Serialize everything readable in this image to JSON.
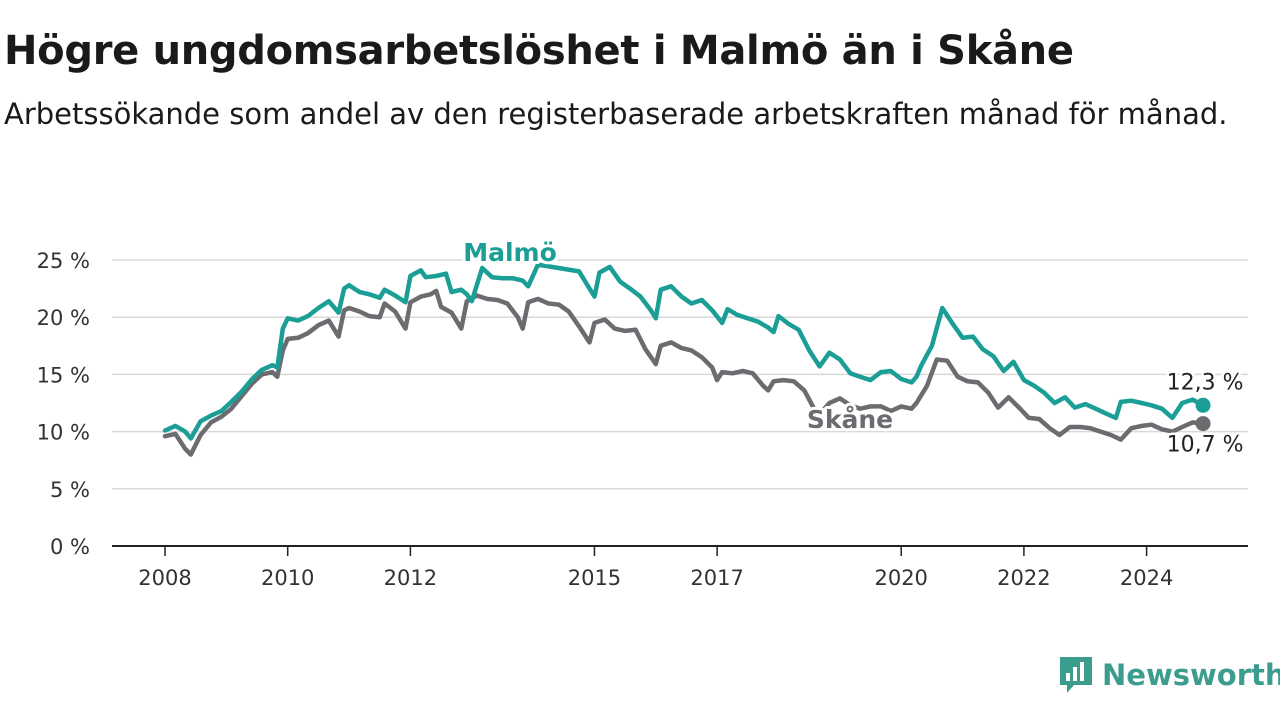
{
  "header": {
    "title": "Högre ungdomsarbetslöshet i Malmö än i Skåne",
    "subtitle": "Arbetssökande som andel av den registerbaserade arbetskraften månad för månad."
  },
  "brand": {
    "name": "Newsworthy",
    "icon": "newsworthy-logo-icon",
    "color": "#3c9d8f"
  },
  "chart_data": {
    "type": "line",
    "ylim": [
      0,
      25
    ],
    "xlim": [
      2008.0,
      2025.5
    ],
    "y_ticks": [
      {
        "value": 0,
        "label": "0 %"
      },
      {
        "value": 5,
        "label": "5 %"
      },
      {
        "value": 10,
        "label": "10 %"
      },
      {
        "value": 15,
        "label": "15 %"
      },
      {
        "value": 20,
        "label": "20 %"
      },
      {
        "value": 25,
        "label": "25 %"
      }
    ],
    "x_ticks": [
      {
        "value": 2008,
        "label": "2008"
      },
      {
        "value": 2010,
        "label": "2010"
      },
      {
        "value": 2012,
        "label": "2012"
      },
      {
        "value": 2015,
        "label": "2015"
      },
      {
        "value": 2017,
        "label": "2017"
      },
      {
        "value": 2020,
        "label": "2020"
      },
      {
        "value": 2022,
        "label": "2022"
      },
      {
        "value": 2024,
        "label": "2024"
      }
    ],
    "grid": "horizontal",
    "series": [
      {
        "name": "Malmö",
        "color": "#1a9e96",
        "end_label": "12,3 %",
        "points": [
          [
            2008.0,
            10.1
          ],
          [
            2008.17,
            10.5
          ],
          [
            2008.33,
            10.0
          ],
          [
            2008.42,
            9.4
          ],
          [
            2008.58,
            10.9
          ],
          [
            2008.75,
            11.4
          ],
          [
            2008.92,
            11.8
          ],
          [
            2009.08,
            12.6
          ],
          [
            2009.25,
            13.5
          ],
          [
            2009.42,
            14.6
          ],
          [
            2009.58,
            15.4
          ],
          [
            2009.75,
            15.8
          ],
          [
            2009.83,
            15.6
          ],
          [
            2009.92,
            19.0
          ],
          [
            2010.0,
            19.9
          ],
          [
            2010.17,
            19.7
          ],
          [
            2010.33,
            20.1
          ],
          [
            2010.5,
            20.8
          ],
          [
            2010.67,
            21.4
          ],
          [
            2010.83,
            20.4
          ],
          [
            2010.92,
            22.5
          ],
          [
            2011.0,
            22.8
          ],
          [
            2011.17,
            22.2
          ],
          [
            2011.33,
            22.0
          ],
          [
            2011.5,
            21.7
          ],
          [
            2011.58,
            22.4
          ],
          [
            2011.75,
            21.9
          ],
          [
            2011.92,
            21.3
          ],
          [
            2012.0,
            23.6
          ],
          [
            2012.17,
            24.1
          ],
          [
            2012.25,
            23.5
          ],
          [
            2012.42,
            23.6
          ],
          [
            2012.58,
            23.8
          ],
          [
            2012.67,
            22.2
          ],
          [
            2012.83,
            22.4
          ],
          [
            2012.92,
            22.0
          ],
          [
            2013.0,
            21.4
          ],
          [
            2013.17,
            24.3
          ],
          [
            2013.33,
            23.5
          ],
          [
            2013.5,
            23.4
          ],
          [
            2013.67,
            23.4
          ],
          [
            2013.83,
            23.2
          ],
          [
            2013.92,
            22.7
          ],
          [
            2014.08,
            24.6
          ],
          [
            2014.75,
            24.0
          ],
          [
            2014.92,
            22.5
          ],
          [
            2015.0,
            21.8
          ],
          [
            2015.08,
            23.9
          ],
          [
            2015.25,
            24.4
          ],
          [
            2015.42,
            23.1
          ],
          [
            2015.58,
            22.5
          ],
          [
            2015.75,
            21.8
          ],
          [
            2015.92,
            20.6
          ],
          [
            2016.0,
            19.9
          ],
          [
            2016.08,
            22.4
          ],
          [
            2016.25,
            22.7
          ],
          [
            2016.42,
            21.8
          ],
          [
            2016.58,
            21.2
          ],
          [
            2016.75,
            21.5
          ],
          [
            2016.92,
            20.6
          ],
          [
            2017.08,
            19.5
          ],
          [
            2017.17,
            20.7
          ],
          [
            2017.33,
            20.2
          ],
          [
            2017.5,
            19.9
          ],
          [
            2017.67,
            19.6
          ],
          [
            2017.83,
            19.1
          ],
          [
            2017.92,
            18.7
          ],
          [
            2018.0,
            20.1
          ],
          [
            2018.17,
            19.4
          ],
          [
            2018.33,
            18.9
          ],
          [
            2018.5,
            17.1
          ],
          [
            2018.67,
            15.7
          ],
          [
            2018.83,
            16.9
          ],
          [
            2019.0,
            16.3
          ],
          [
            2019.17,
            15.1
          ],
          [
            2019.33,
            14.8
          ],
          [
            2019.5,
            14.5
          ],
          [
            2019.67,
            15.2
          ],
          [
            2019.83,
            15.3
          ],
          [
            2020.0,
            14.6
          ],
          [
            2020.17,
            14.3
          ],
          [
            2020.25,
            14.8
          ],
          [
            2020.33,
            15.8
          ],
          [
            2020.5,
            17.5
          ],
          [
            2020.67,
            20.8
          ],
          [
            2020.83,
            19.5
          ],
          [
            2021.0,
            18.2
          ],
          [
            2021.17,
            18.3
          ],
          [
            2021.33,
            17.2
          ],
          [
            2021.5,
            16.6
          ],
          [
            2021.67,
            15.3
          ],
          [
            2021.83,
            16.1
          ],
          [
            2022.0,
            14.5
          ],
          [
            2022.17,
            14.0
          ],
          [
            2022.33,
            13.4
          ],
          [
            2022.5,
            12.5
          ],
          [
            2022.67,
            13.0
          ],
          [
            2022.83,
            12.1
          ],
          [
            2023.0,
            12.4
          ],
          [
            2023.17,
            12.0
          ],
          [
            2023.33,
            11.6
          ],
          [
            2023.5,
            11.2
          ],
          [
            2023.58,
            12.6
          ],
          [
            2023.75,
            12.7
          ],
          [
            2023.92,
            12.5
          ],
          [
            2024.08,
            12.3
          ],
          [
            2024.25,
            12.0
          ],
          [
            2024.42,
            11.2
          ],
          [
            2024.58,
            12.5
          ],
          [
            2024.75,
            12.8
          ],
          [
            2024.92,
            12.3
          ]
        ]
      },
      {
        "name": "Skåne",
        "color": "#6b6b70",
        "end_label": "10,7 %",
        "points": [
          [
            2008.0,
            9.6
          ],
          [
            2008.17,
            9.8
          ],
          [
            2008.33,
            8.5
          ],
          [
            2008.42,
            8.0
          ],
          [
            2008.58,
            9.7
          ],
          [
            2008.75,
            10.8
          ],
          [
            2008.92,
            11.3
          ],
          [
            2009.08,
            12.0
          ],
          [
            2009.25,
            13.1
          ],
          [
            2009.42,
            14.2
          ],
          [
            2009.58,
            15.0
          ],
          [
            2009.75,
            15.2
          ],
          [
            2009.83,
            14.8
          ],
          [
            2009.92,
            17.1
          ],
          [
            2010.0,
            18.1
          ],
          [
            2010.17,
            18.2
          ],
          [
            2010.33,
            18.6
          ],
          [
            2010.5,
            19.3
          ],
          [
            2010.67,
            19.7
          ],
          [
            2010.83,
            18.3
          ],
          [
            2010.92,
            20.6
          ],
          [
            2011.0,
            20.8
          ],
          [
            2011.17,
            20.5
          ],
          [
            2011.33,
            20.1
          ],
          [
            2011.5,
            20.0
          ],
          [
            2011.58,
            21.2
          ],
          [
            2011.75,
            20.5
          ],
          [
            2011.92,
            19.0
          ],
          [
            2012.0,
            21.3
          ],
          [
            2012.17,
            21.8
          ],
          [
            2012.33,
            22.0
          ],
          [
            2012.42,
            22.3
          ],
          [
            2012.5,
            20.9
          ],
          [
            2012.67,
            20.4
          ],
          [
            2012.83,
            19.0
          ],
          [
            2012.92,
            21.4
          ],
          [
            2013.08,
            21.9
          ],
          [
            2013.25,
            21.6
          ],
          [
            2013.42,
            21.5
          ],
          [
            2013.58,
            21.2
          ],
          [
            2013.75,
            20.0
          ],
          [
            2013.83,
            19.0
          ],
          [
            2013.92,
            21.3
          ],
          [
            2014.08,
            21.6
          ],
          [
            2014.25,
            21.2
          ],
          [
            2014.42,
            21.1
          ],
          [
            2014.58,
            20.5
          ],
          [
            2014.75,
            19.2
          ],
          [
            2014.92,
            17.8
          ],
          [
            2015.0,
            19.5
          ],
          [
            2015.17,
            19.8
          ],
          [
            2015.33,
            19.0
          ],
          [
            2015.5,
            18.8
          ],
          [
            2015.67,
            18.9
          ],
          [
            2015.83,
            17.2
          ],
          [
            2016.0,
            15.9
          ],
          [
            2016.08,
            17.5
          ],
          [
            2016.25,
            17.8
          ],
          [
            2016.42,
            17.3
          ],
          [
            2016.58,
            17.1
          ],
          [
            2016.75,
            16.5
          ],
          [
            2016.92,
            15.6
          ],
          [
            2017.0,
            14.5
          ],
          [
            2017.08,
            15.2
          ],
          [
            2017.25,
            15.1
          ],
          [
            2017.42,
            15.3
          ],
          [
            2017.58,
            15.1
          ],
          [
            2017.75,
            14.0
          ],
          [
            2017.83,
            13.6
          ],
          [
            2017.92,
            14.4
          ],
          [
            2018.08,
            14.5
          ],
          [
            2018.25,
            14.4
          ],
          [
            2018.42,
            13.6
          ],
          [
            2018.58,
            12.0
          ],
          [
            2018.67,
            11.5
          ],
          [
            2018.83,
            12.5
          ],
          [
            2019.0,
            12.9
          ],
          [
            2019.17,
            12.3
          ],
          [
            2019.33,
            12.0
          ],
          [
            2019.5,
            12.2
          ],
          [
            2019.67,
            12.2
          ],
          [
            2019.83,
            11.8
          ],
          [
            2020.0,
            12.2
          ],
          [
            2020.17,
            12.0
          ],
          [
            2020.25,
            12.5
          ],
          [
            2020.42,
            14.0
          ],
          [
            2020.58,
            16.3
          ],
          [
            2020.75,
            16.2
          ],
          [
            2020.92,
            14.8
          ],
          [
            2021.08,
            14.4
          ],
          [
            2021.25,
            14.3
          ],
          [
            2021.42,
            13.4
          ],
          [
            2021.58,
            12.1
          ],
          [
            2021.75,
            13.0
          ],
          [
            2021.92,
            12.1
          ],
          [
            2022.08,
            11.2
          ],
          [
            2022.25,
            11.1
          ],
          [
            2022.42,
            10.3
          ],
          [
            2022.58,
            9.7
          ],
          [
            2022.75,
            10.4
          ],
          [
            2022.92,
            10.4
          ],
          [
            2023.08,
            10.3
          ],
          [
            2023.25,
            10.0
          ],
          [
            2023.42,
            9.7
          ],
          [
            2023.58,
            9.3
          ],
          [
            2023.75,
            10.3
          ],
          [
            2023.92,
            10.5
          ],
          [
            2024.08,
            10.6
          ],
          [
            2024.25,
            10.2
          ],
          [
            2024.42,
            10.0
          ],
          [
            2024.58,
            10.4
          ],
          [
            2024.75,
            10.8
          ],
          [
            2024.92,
            10.7
          ]
        ]
      }
    ]
  }
}
